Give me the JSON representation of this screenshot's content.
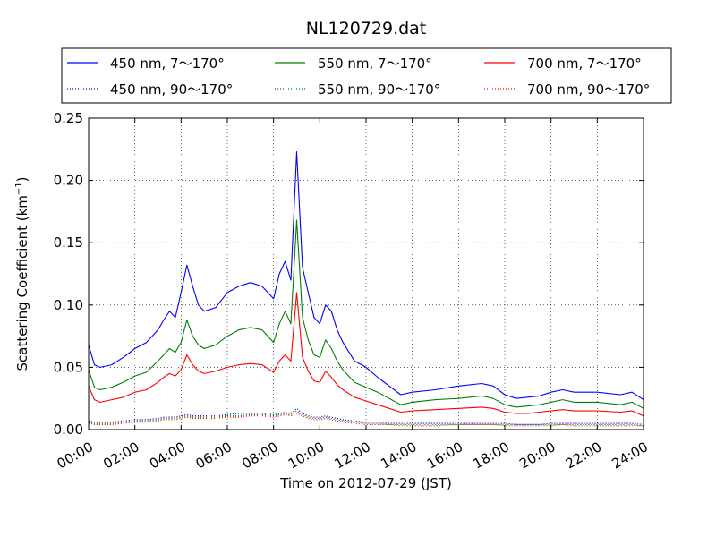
{
  "chart_data": {
    "type": "line",
    "title": "NL120729.dat",
    "xlabel": "Time on 2012-07-29 (JST)",
    "ylabel_main": "Scattering Coefficient (km",
    "ylabel_sup": "−1",
    "ylabel_close": ")",
    "xlim": [
      "00:00",
      "24:00"
    ],
    "ylim": [
      0,
      0.25
    ],
    "grid": true,
    "grid_style": "dotted",
    "legend_position": "top",
    "x_ticks": [
      "00:00",
      "02:00",
      "04:00",
      "06:00",
      "08:00",
      "10:00",
      "12:00",
      "14:00",
      "16:00",
      "18:00",
      "20:00",
      "22:00",
      "24:00"
    ],
    "y_ticks": [
      "0.00",
      "0.05",
      "0.10",
      "0.15",
      "0.20",
      "0.25"
    ],
    "colors": {
      "450": "#0000ff",
      "550": "#008000",
      "700": "#ff0000"
    },
    "x_hours": [
      0,
      0.25,
      0.5,
      1,
      1.5,
      2,
      2.5,
      3,
      3.25,
      3.5,
      3.75,
      4,
      4.25,
      4.5,
      4.75,
      5,
      5.5,
      6,
      6.5,
      7,
      7.5,
      8,
      8.25,
      8.5,
      8.75,
      9,
      9.25,
      9.5,
      9.75,
      10,
      10.25,
      10.5,
      10.75,
      11,
      11.5,
      12,
      12.5,
      13,
      13.5,
      14,
      15,
      16,
      17,
      17.5,
      18,
      18.5,
      19,
      19.5,
      20,
      20.5,
      21,
      22,
      23,
      23.5,
      24
    ],
    "series": [
      {
        "name": "450 nm, 7～170°",
        "wavelength": "450",
        "style": "solid",
        "values": [
          0.068,
          0.052,
          0.05,
          0.052,
          0.058,
          0.065,
          0.07,
          0.08,
          0.088,
          0.095,
          0.09,
          0.11,
          0.132,
          0.115,
          0.1,
          0.095,
          0.098,
          0.11,
          0.115,
          0.118,
          0.115,
          0.105,
          0.125,
          0.135,
          0.12,
          0.223,
          0.13,
          0.11,
          0.09,
          0.085,
          0.1,
          0.095,
          0.08,
          0.07,
          0.055,
          0.05,
          0.042,
          0.035,
          0.028,
          0.03,
          0.032,
          0.035,
          0.037,
          0.035,
          0.028,
          0.025,
          0.026,
          0.027,
          0.03,
          0.032,
          0.03,
          0.03,
          0.028,
          0.03,
          0.024
        ]
      },
      {
        "name": "550 nm, 7～170°",
        "wavelength": "550",
        "style": "solid",
        "values": [
          0.048,
          0.034,
          0.032,
          0.034,
          0.038,
          0.043,
          0.046,
          0.055,
          0.06,
          0.065,
          0.062,
          0.07,
          0.088,
          0.075,
          0.068,
          0.065,
          0.068,
          0.075,
          0.08,
          0.082,
          0.08,
          0.07,
          0.085,
          0.095,
          0.085,
          0.168,
          0.09,
          0.072,
          0.06,
          0.058,
          0.072,
          0.065,
          0.055,
          0.048,
          0.038,
          0.034,
          0.03,
          0.025,
          0.02,
          0.022,
          0.024,
          0.025,
          0.027,
          0.025,
          0.02,
          0.018,
          0.019,
          0.02,
          0.022,
          0.024,
          0.022,
          0.022,
          0.02,
          0.022,
          0.017
        ]
      },
      {
        "name": "700 nm, 7～170°",
        "wavelength": "700",
        "style": "solid",
        "values": [
          0.035,
          0.024,
          0.022,
          0.024,
          0.026,
          0.03,
          0.032,
          0.038,
          0.042,
          0.045,
          0.043,
          0.048,
          0.06,
          0.052,
          0.047,
          0.045,
          0.047,
          0.05,
          0.052,
          0.053,
          0.052,
          0.046,
          0.055,
          0.06,
          0.055,
          0.11,
          0.058,
          0.047,
          0.039,
          0.038,
          0.047,
          0.042,
          0.036,
          0.032,
          0.026,
          0.023,
          0.02,
          0.017,
          0.014,
          0.015,
          0.016,
          0.017,
          0.018,
          0.017,
          0.014,
          0.013,
          0.013,
          0.014,
          0.015,
          0.016,
          0.015,
          0.015,
          0.014,
          0.015,
          0.011
        ]
      },
      {
        "name": "450 nm, 90～170°",
        "wavelength": "450",
        "style": "dotted",
        "values": [
          0.007,
          0.006,
          0.006,
          0.006,
          0.007,
          0.008,
          0.008,
          0.009,
          0.01,
          0.01,
          0.01,
          0.011,
          0.012,
          0.011,
          0.011,
          0.011,
          0.011,
          0.012,
          0.013,
          0.013,
          0.013,
          0.012,
          0.013,
          0.014,
          0.013,
          0.017,
          0.013,
          0.011,
          0.01,
          0.01,
          0.011,
          0.01,
          0.009,
          0.008,
          0.007,
          0.006,
          0.006,
          0.005,
          0.005,
          0.005,
          0.005,
          0.005,
          0.005,
          0.005,
          0.005,
          0.004,
          0.004,
          0.004,
          0.005,
          0.005,
          0.005,
          0.005,
          0.005,
          0.005,
          0.004
        ]
      },
      {
        "name": "550 nm, 90～170°",
        "wavelength": "550",
        "style": "dotted",
        "values": [
          0.006,
          0.005,
          0.005,
          0.005,
          0.006,
          0.007,
          0.007,
          0.008,
          0.009,
          0.009,
          0.009,
          0.01,
          0.011,
          0.01,
          0.01,
          0.01,
          0.01,
          0.011,
          0.011,
          0.012,
          0.012,
          0.011,
          0.012,
          0.013,
          0.012,
          0.015,
          0.012,
          0.01,
          0.009,
          0.009,
          0.01,
          0.009,
          0.008,
          0.007,
          0.006,
          0.005,
          0.005,
          0.004,
          0.004,
          0.004,
          0.004,
          0.004,
          0.004,
          0.004,
          0.004,
          0.004,
          0.004,
          0.004,
          0.004,
          0.004,
          0.004,
          0.004,
          0.004,
          0.004,
          0.003
        ]
      },
      {
        "name": "700 nm, 90～170°",
        "wavelength": "700",
        "style": "dotted",
        "values": [
          0.005,
          0.004,
          0.004,
          0.004,
          0.005,
          0.006,
          0.006,
          0.007,
          0.008,
          0.008,
          0.008,
          0.009,
          0.01,
          0.009,
          0.009,
          0.009,
          0.009,
          0.01,
          0.01,
          0.011,
          0.011,
          0.01,
          0.011,
          0.012,
          0.011,
          0.013,
          0.011,
          0.009,
          0.008,
          0.008,
          0.009,
          0.008,
          0.007,
          0.006,
          0.005,
          0.004,
          0.004,
          0.004,
          0.003,
          0.003,
          0.003,
          0.004,
          0.004,
          0.004,
          0.003,
          0.003,
          0.003,
          0.003,
          0.003,
          0.004,
          0.003,
          0.003,
          0.003,
          0.003,
          0.003
        ]
      }
    ]
  }
}
